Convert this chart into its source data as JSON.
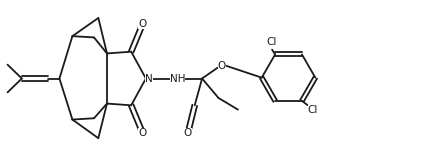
{
  "bg_color": "#ffffff",
  "line_color": "#1a1a1a",
  "lw": 1.3,
  "fs": 7.5,
  "figsize": [
    4.37,
    1.57
  ],
  "dpi": 100,
  "xlim": [
    0,
    10
  ],
  "ylim": [
    0,
    3.6
  ]
}
